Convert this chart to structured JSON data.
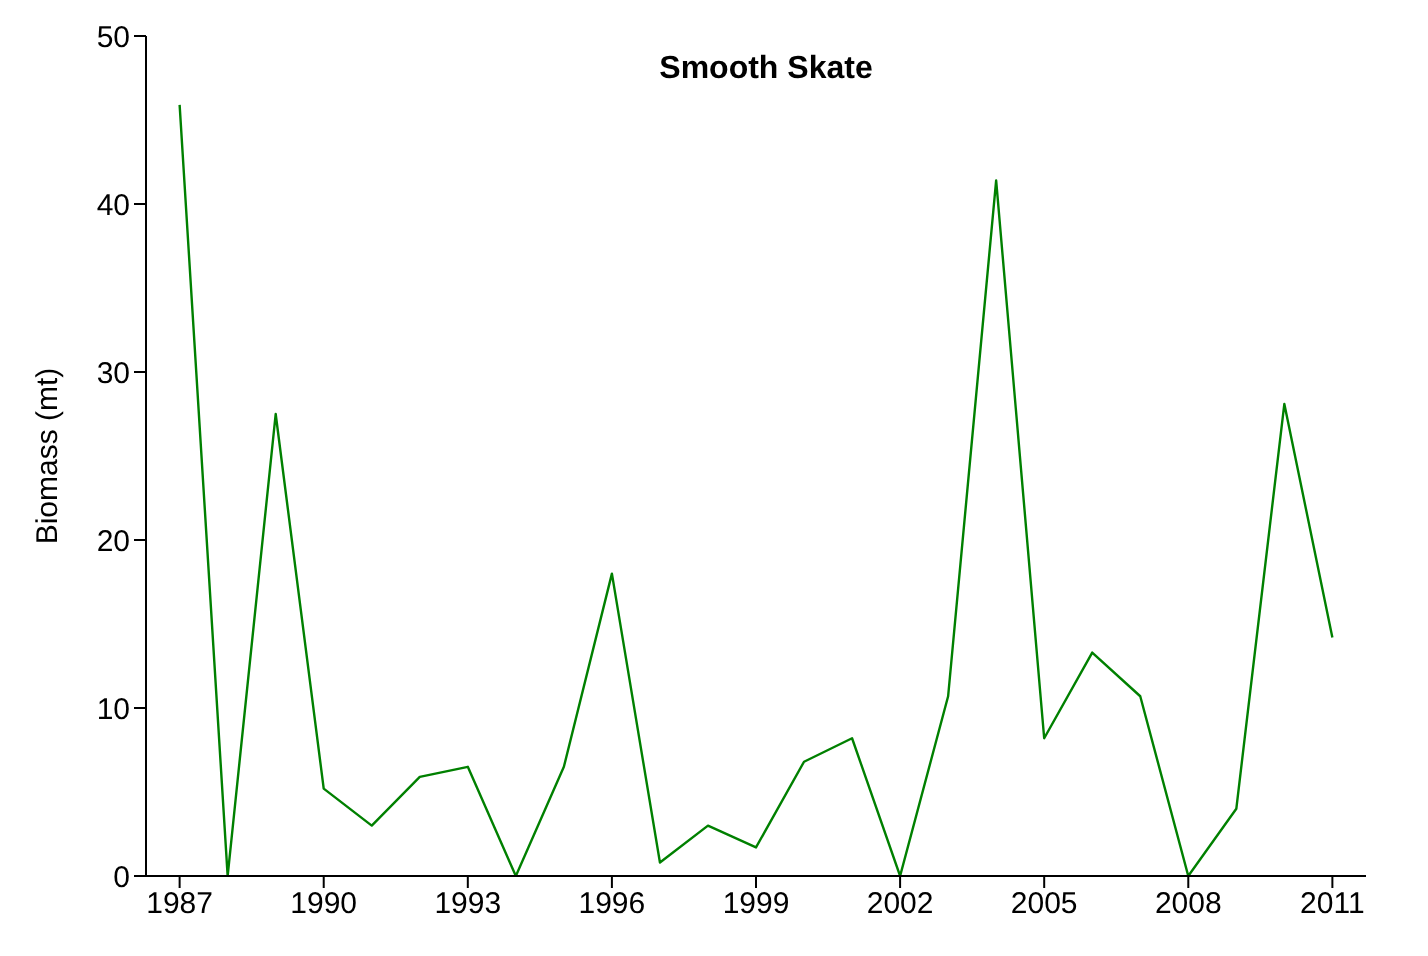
{
  "chart_data": {
    "type": "line",
    "title": "Smooth Skate",
    "ylabel": "Biomass (mt)",
    "x": [
      1987,
      1988,
      1989,
      1990,
      1991,
      1992,
      1993,
      1994,
      1995,
      1996,
      1997,
      1998,
      1999,
      2000,
      2001,
      2002,
      2003,
      2004,
      2005,
      2006,
      2007,
      2008,
      2009,
      2010,
      2011
    ],
    "series": [
      {
        "color": "#008000",
        "values": [
          45.9,
          0,
          27.5,
          5.2,
          3.0,
          5.9,
          6.5,
          0,
          6.5,
          18.0,
          0.8,
          3.0,
          1.7,
          6.8,
          8.2,
          0,
          10.7,
          41.4,
          8.2,
          13.3,
          10.7,
          0,
          4.0,
          28.1,
          14.2
        ]
      }
    ],
    "xlim": [
      1986.3,
      2011.7
    ],
    "xticks": [
      1987,
      1990,
      1993,
      1996,
      1999,
      2002,
      2005,
      2008,
      2011
    ],
    "ylim": [
      0,
      50
    ],
    "yticks": [
      0,
      10,
      20,
      30,
      40,
      50
    ],
    "grid": false,
    "legend": false,
    "marker": "none",
    "line_style": "solid"
  }
}
